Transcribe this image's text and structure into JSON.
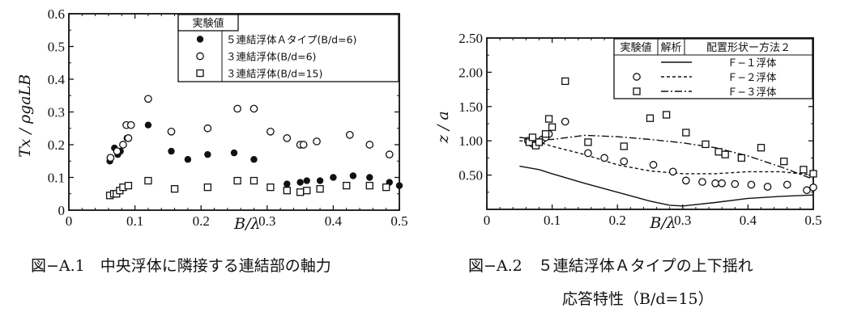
{
  "chart_data": [
    {
      "type": "scatter",
      "xlabel": "B/λ",
      "ylabel": "Tx / ρgaLB",
      "xlim": [
        0,
        0.5
      ],
      "ylim": [
        0,
        0.6
      ],
      "xticks": [
        "0",
        "0.1",
        "0.2",
        "0.3",
        "0.4",
        "0.5"
      ],
      "yticks": [
        "0",
        "0.1",
        "0.2",
        "0.3",
        "0.4",
        "0.5",
        "0.6"
      ],
      "caption": "図−A.1　中央浮体に隣接する連結部の軸力",
      "legend": {
        "title": "実験値",
        "entries": [
          {
            "marker": "filled-circle",
            "label": "５連結浮体Ａタイプ(B/d=6)"
          },
          {
            "marker": "open-circle",
            "label": "３連結浮体(B/d=6)"
          },
          {
            "marker": "open-square",
            "label": "３連結浮体(B/d=15)"
          }
        ]
      },
      "series": [
        {
          "marker": "filled-circle",
          "x": [
            0.062,
            0.069,
            0.074,
            0.078,
            0.082,
            0.088,
            0.12,
            0.155,
            0.18,
            0.21,
            0.25,
            0.28,
            0.33,
            0.35,
            0.36,
            0.38,
            0.4,
            0.43,
            0.455,
            0.485,
            0.5
          ],
          "y": [
            0.15,
            0.19,
            0.17,
            0.18,
            0.2,
            0.22,
            0.26,
            0.18,
            0.155,
            0.17,
            0.175,
            0.155,
            0.08,
            0.085,
            0.09,
            0.09,
            0.1,
            0.105,
            0.1,
            0.085,
            0.075
          ]
        },
        {
          "marker": "open-circle",
          "x": [
            0.063,
            0.073,
            0.082,
            0.087,
            0.09,
            0.094,
            0.12,
            0.155,
            0.21,
            0.255,
            0.28,
            0.305,
            0.33,
            0.35,
            0.355,
            0.375,
            0.425,
            0.455,
            0.485
          ],
          "y": [
            0.16,
            0.18,
            0.2,
            0.26,
            0.22,
            0.26,
            0.34,
            0.24,
            0.25,
            0.31,
            0.31,
            0.24,
            0.22,
            0.2,
            0.2,
            0.21,
            0.23,
            0.2,
            0.17
          ]
        },
        {
          "marker": "open-square",
          "x": [
            0.062,
            0.068,
            0.072,
            0.077,
            0.082,
            0.09,
            0.12,
            0.16,
            0.21,
            0.255,
            0.28,
            0.305,
            0.33,
            0.35,
            0.36,
            0.38,
            0.42,
            0.455,
            0.48
          ],
          "y": [
            0.045,
            0.05,
            0.05,
            0.06,
            0.07,
            0.075,
            0.09,
            0.065,
            0.07,
            0.09,
            0.09,
            0.07,
            0.06,
            0.055,
            0.06,
            0.065,
            0.075,
            0.075,
            0.07
          ]
        }
      ]
    },
    {
      "type": "line",
      "xlabel": "B/λ",
      "ylabel": "z / a",
      "xlim": [
        0,
        0.5
      ],
      "ylim": [
        0,
        2.5
      ],
      "xticks": [
        "0",
        "0.1",
        "0.2",
        "0.3",
        "0.4",
        "0.5"
      ],
      "yticks": [
        "0.50",
        "1.00",
        "1.50",
        "2.00",
        "2.50"
      ],
      "caption_lines": [
        "図−A.2　５連結浮体Ａタイプの上下揺れ",
        "応答特性（B/d=15）"
      ],
      "legend": {
        "headers": [
          "実験値",
          "解析",
          "配置形状ー方法２"
        ],
        "entries": [
          {
            "marker": "",
            "line": "solid",
            "label": "Ｆ−１浮体"
          },
          {
            "marker": "open-circle",
            "line": "dashed",
            "label": "Ｆ−２浮体"
          },
          {
            "marker": "open-square",
            "line": "dashdot",
            "label": "Ｆ−３浮体"
          }
        ]
      },
      "series": [
        {
          "line": "solid",
          "x": [
            0.05,
            0.08,
            0.1,
            0.15,
            0.2,
            0.25,
            0.28,
            0.3,
            0.35,
            0.4,
            0.45,
            0.5
          ],
          "y": [
            0.63,
            0.58,
            0.52,
            0.38,
            0.25,
            0.12,
            0.06,
            0.05,
            0.1,
            0.16,
            0.19,
            0.21
          ]
        },
        {
          "line": "dashed",
          "x": [
            0.05,
            0.08,
            0.1,
            0.15,
            0.2,
            0.25,
            0.3,
            0.35,
            0.4,
            0.45,
            0.5
          ],
          "y": [
            1.0,
            0.98,
            0.92,
            0.8,
            0.65,
            0.56,
            0.52,
            0.52,
            0.55,
            0.55,
            0.5
          ]
        },
        {
          "line": "dashdot",
          "x": [
            0.05,
            0.08,
            0.1,
            0.15,
            0.2,
            0.25,
            0.3,
            0.35,
            0.4,
            0.45,
            0.5
          ],
          "y": [
            1.05,
            1.02,
            1.02,
            1.08,
            1.06,
            1.02,
            0.97,
            0.9,
            0.78,
            0.62,
            0.44
          ]
        },
        {
          "marker": "open-circle",
          "x": [
            0.063,
            0.068,
            0.072,
            0.078,
            0.085,
            0.09,
            0.095,
            0.12,
            0.155,
            0.18,
            0.21,
            0.255,
            0.285,
            0.305,
            0.33,
            0.35,
            0.36,
            0.38,
            0.405,
            0.43,
            0.46,
            0.49,
            0.5
          ],
          "y": [
            1.0,
            0.97,
            0.95,
            0.98,
            1.02,
            1.05,
            1.1,
            1.28,
            0.82,
            0.75,
            0.7,
            0.65,
            0.55,
            0.42,
            0.4,
            0.38,
            0.38,
            0.37,
            0.36,
            0.33,
            0.36,
            0.28,
            0.32
          ]
        },
        {
          "marker": "open-square",
          "x": [
            0.065,
            0.07,
            0.075,
            0.08,
            0.09,
            0.095,
            0.1,
            0.12,
            0.155,
            0.21,
            0.25,
            0.275,
            0.305,
            0.335,
            0.355,
            0.365,
            0.39,
            0.42,
            0.455,
            0.485,
            0.5
          ],
          "y": [
            0.98,
            1.05,
            0.93,
            0.98,
            1.1,
            1.32,
            1.2,
            1.87,
            0.98,
            0.92,
            1.33,
            1.38,
            1.12,
            0.95,
            0.84,
            0.8,
            0.75,
            0.9,
            0.7,
            0.58,
            0.52
          ]
        }
      ]
    }
  ]
}
